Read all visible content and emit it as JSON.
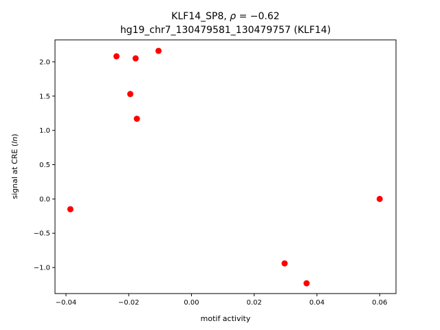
{
  "chart_data": {
    "type": "scatter",
    "title_line1": "KLF14_SP8, ρ = −0.62",
    "title_line2": "hg19_chr7_130479581_130479757 (KLF14)",
    "xlabel": "motif activity",
    "ylabel": "signal at CRE (ln)",
    "xlim": [
      -0.0435,
      0.0652
    ],
    "ylim": [
      -1.38,
      2.32
    ],
    "xticks": [
      -0.04,
      -0.02,
      0.0,
      0.02,
      0.04,
      0.06
    ],
    "xtick_labels": [
      "−0.04",
      "−0.02",
      "0.00",
      "0.02",
      "0.04",
      "0.06"
    ],
    "yticks": [
      -1.0,
      -0.5,
      0.0,
      0.5,
      1.0,
      1.5,
      2.0
    ],
    "ytick_labels": [
      "−1.0",
      "−0.5",
      "0.0",
      "0.5",
      "1.0",
      "1.5",
      "2.0"
    ],
    "marker_color": "#ff0000",
    "grid": false,
    "points": [
      {
        "x": -0.0386,
        "y": -0.15
      },
      {
        "x": -0.0239,
        "y": 2.08
      },
      {
        "x": -0.0178,
        "y": 2.05
      },
      {
        "x": -0.0105,
        "y": 2.16
      },
      {
        "x": -0.0195,
        "y": 1.53
      },
      {
        "x": -0.0174,
        "y": 1.17
      },
      {
        "x": 0.06,
        "y": 0.0
      },
      {
        "x": 0.0297,
        "y": -0.94
      },
      {
        "x": 0.0367,
        "y": -1.23
      }
    ]
  }
}
